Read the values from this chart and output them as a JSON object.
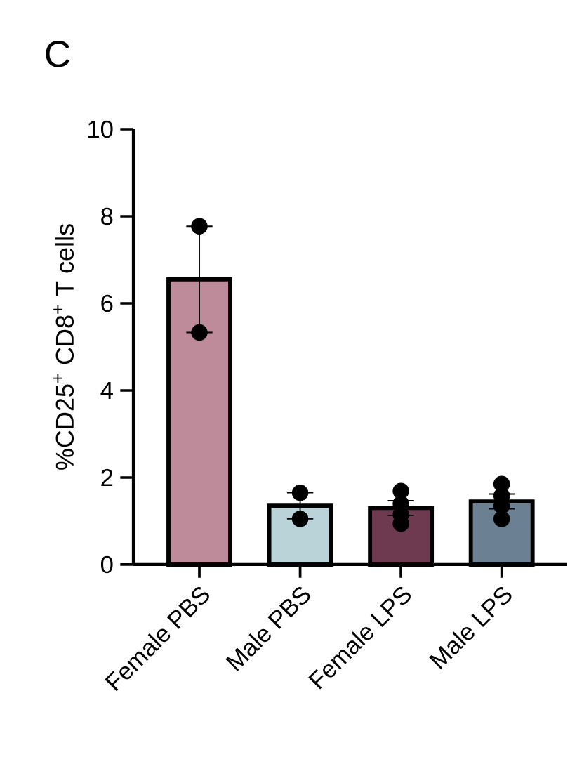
{
  "chart_data": {
    "type": "bar",
    "title": "C",
    "ylabel": "%CD25$^{+}$ CD8$^{+}$ T cells",
    "categories": [
      "Female PBS",
      "Male PBS",
      "Female LPS",
      "Male LPS"
    ],
    "series": [
      {
        "colors": [
          "#bd8b99",
          "#b9d3d9",
          "#6e3a50",
          "#6b8093"
        ],
        "values": [
          6.55,
          1.35,
          1.3,
          1.45
        ],
        "errors": [
          1.22,
          0.3,
          0.17,
          0.17
        ]
      },
      {
        "type": "scatter",
        "color": "#000000",
        "marker": "circle",
        "x": [
          "Female PBS",
          "Female PBS",
          "Male PBS",
          "Male PBS",
          "Female LPS",
          "Female LPS",
          "Female LPS",
          "Female LPS",
          "Male LPS",
          "Male LPS",
          "Male LPS",
          "Male LPS"
        ],
        "values": [
          7.77,
          5.33,
          1.65,
          1.05,
          1.4,
          0.94,
          1.69,
          1.15,
          1.58,
          1.05,
          1.85,
          1.35
        ]
      }
    ],
    "ylim": [
      0,
      10
    ],
    "yticks": [
      0,
      2,
      4,
      6,
      8,
      10
    ],
    "grid": false
  }
}
